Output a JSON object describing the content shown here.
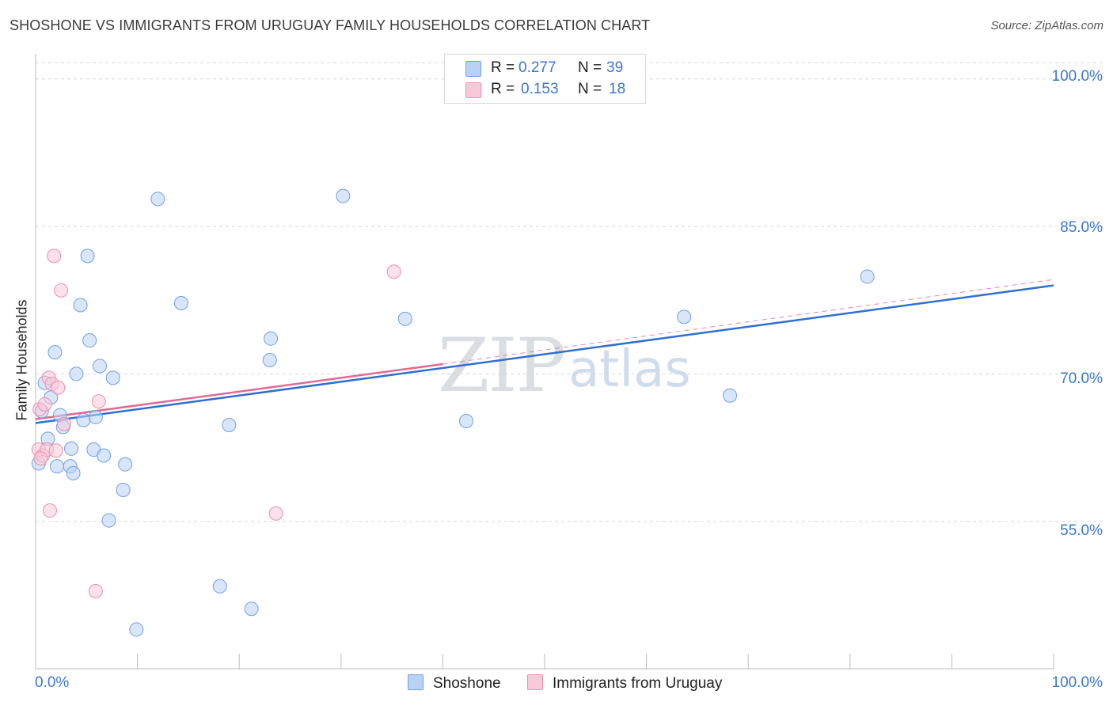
{
  "header": {
    "title": "SHOSHONE VS IMMIGRANTS FROM URUGUAY FAMILY HOUSEHOLDS CORRELATION CHART",
    "source": "Source: ZipAtlas.com"
  },
  "watermark": {
    "zip": "ZIP",
    "atlas": "atlas"
  },
  "colors": {
    "blue": "#6fa0e6",
    "blue_fill": "#b9d2f4",
    "blue_line": "#2f6fd0",
    "pink": "#ee8fb0",
    "pink_fill": "#f8c9d8",
    "pink_line": "#e06a95",
    "tick_text": "#3b78d1"
  },
  "legend_top": {
    "rows": [
      {
        "r_label": "R =",
        "r_value": "0.277",
        "n_label": "N =",
        "n_value": "39"
      },
      {
        "r_label": "R =",
        "r_value": "0.153",
        "n_label": "N =",
        "n_value": "18"
      }
    ]
  },
  "legend_bottom": {
    "series1": "Shoshone",
    "series2": "Immigrants from Uruguay"
  },
  "chart_data": {
    "type": "scatter",
    "title": "SHOSHONE VS IMMIGRANTS FROM URUGUAY FAMILY HOUSEHOLDS CORRELATION CHART",
    "xlabel": "",
    "ylabel": "Family Households",
    "xlim": [
      0,
      100
    ],
    "ylim": [
      40,
      102.4
    ],
    "x_tick_labels": [
      "0.0%",
      "100.0%"
    ],
    "y_ticks": [
      55,
      70,
      85,
      100
    ],
    "y_tick_labels": [
      "55.0%",
      "70.0%",
      "85.0%",
      "100.0%"
    ],
    "grid": true,
    "series": [
      {
        "name": "Shoshone",
        "r": 0.277,
        "n": 39,
        "trend": {
          "x": [
            0,
            100
          ],
          "y": [
            65.0,
            79.0
          ]
        },
        "points": [
          [
            0.3,
            60.9
          ],
          [
            0.6,
            66.2
          ],
          [
            0.9,
            69.1
          ],
          [
            1.2,
            63.4
          ],
          [
            1.5,
            67.6
          ],
          [
            1.9,
            72.2
          ],
          [
            2.1,
            60.6
          ],
          [
            2.4,
            65.8
          ],
          [
            2.7,
            64.6
          ],
          [
            3.4,
            60.6
          ],
          [
            3.5,
            62.4
          ],
          [
            3.7,
            59.9
          ],
          [
            4.0,
            70.0
          ],
          [
            4.4,
            77.0
          ],
          [
            4.7,
            65.3
          ],
          [
            5.1,
            82.0
          ],
          [
            5.3,
            73.4
          ],
          [
            5.7,
            62.3
          ],
          [
            5.9,
            65.6
          ],
          [
            6.3,
            70.8
          ],
          [
            6.7,
            61.7
          ],
          [
            7.2,
            55.1
          ],
          [
            7.6,
            69.6
          ],
          [
            8.6,
            58.2
          ],
          [
            8.8,
            60.8
          ],
          [
            9.9,
            44.0
          ],
          [
            12.0,
            87.8
          ],
          [
            14.3,
            77.2
          ],
          [
            18.1,
            48.4
          ],
          [
            19.0,
            64.8
          ],
          [
            21.2,
            46.1
          ],
          [
            23.0,
            71.4
          ],
          [
            23.1,
            73.6
          ],
          [
            30.2,
            88.1
          ],
          [
            36.3,
            75.6
          ],
          [
            42.3,
            65.2
          ],
          [
            63.7,
            75.8
          ],
          [
            68.2,
            67.8
          ],
          [
            81.7,
            79.9
          ]
        ]
      },
      {
        "name": "Immigrants from Uruguay",
        "r": 0.153,
        "n": 18,
        "trend": {
          "x": [
            0,
            40
          ],
          "y": [
            65.4,
            71.0
          ],
          "dashed_to": [
            100,
            79.6
          ]
        },
        "points": [
          [
            0.3,
            62.3
          ],
          [
            0.4,
            66.4
          ],
          [
            0.7,
            61.7
          ],
          [
            0.9,
            66.9
          ],
          [
            1.1,
            62.3
          ],
          [
            1.3,
            69.6
          ],
          [
            1.4,
            56.1
          ],
          [
            1.6,
            69.0
          ],
          [
            1.8,
            82.0
          ],
          [
            2.0,
            62.2
          ],
          [
            2.2,
            68.6
          ],
          [
            2.5,
            78.5
          ],
          [
            2.8,
            64.9
          ],
          [
            5.9,
            47.9
          ],
          [
            6.2,
            67.2
          ],
          [
            23.6,
            55.8
          ],
          [
            35.2,
            80.4
          ],
          [
            0.5,
            61.4
          ]
        ]
      }
    ]
  }
}
